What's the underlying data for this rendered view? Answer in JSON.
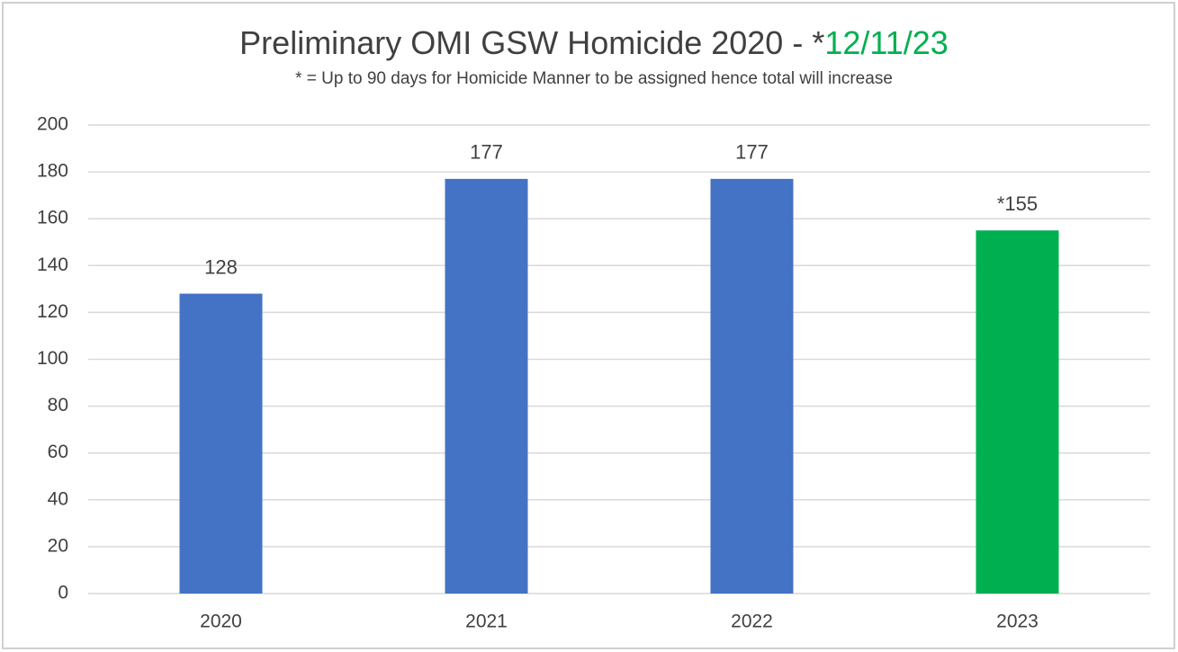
{
  "chart_data": {
    "type": "bar",
    "title": "Preliminary OMI GSW Homicide 2020 - *",
    "title_date": "12/11/23",
    "title_date_color": "#00b050",
    "subtitle": "* = Up to 90 days for Homicide Manner to be assigned hence total will increase",
    "categories": [
      "2020",
      "2021",
      "2022",
      "2023"
    ],
    "values": [
      128,
      177,
      177,
      155
    ],
    "value_labels": [
      "128",
      "177",
      "177",
      "*155"
    ],
    "colors": [
      "#4472c4",
      "#4472c4",
      "#4472c4",
      "#00b050"
    ],
    "ylim": [
      0,
      200
    ],
    "yticks": [
      0,
      20,
      40,
      60,
      80,
      100,
      120,
      140,
      160,
      180,
      200
    ],
    "grid": true
  }
}
